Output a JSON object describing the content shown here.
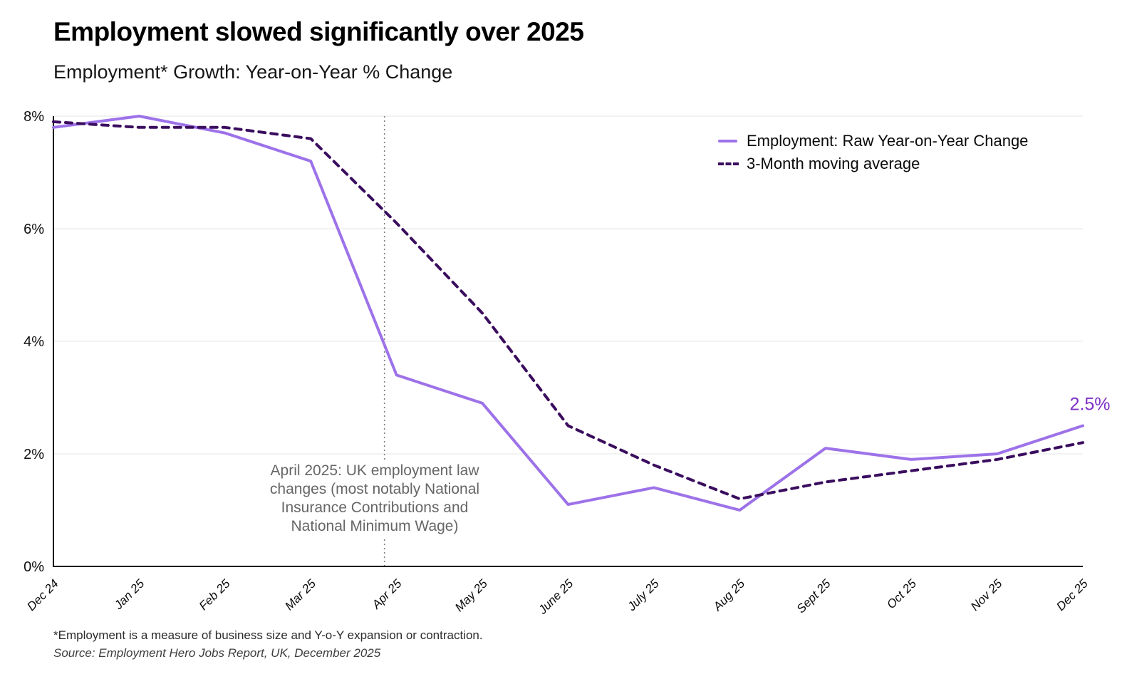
{
  "header": {
    "title": "Employment slowed significantly over 2025",
    "subtitle": "Employment* Growth: Year-on-Year % Change"
  },
  "chart_data": {
    "type": "line",
    "categories": [
      "Dec 24",
      "Jan 25",
      "Feb 25",
      "Mar 25",
      "Apr 25",
      "May 25",
      "June 25",
      "July 25",
      "Aug 25",
      "Sept 25",
      "Oct 25",
      "Nov 25",
      "Dec 25"
    ],
    "series": [
      {
        "name": "Employment: Raw Year-on-Year Change",
        "style": "solid",
        "color": "#9D72E9",
        "values": [
          7.8,
          8.0,
          7.7,
          7.2,
          3.4,
          2.9,
          1.1,
          1.4,
          1.0,
          2.1,
          1.9,
          2.0,
          2.5
        ]
      },
      {
        "name": "3-Month moving average",
        "style": "dashed",
        "color": "#3A0D5E",
        "values": [
          7.9,
          7.8,
          7.8,
          7.6,
          6.1,
          4.5,
          2.5,
          1.8,
          1.2,
          1.5,
          1.7,
          1.9,
          2.2
        ]
      }
    ],
    "ylim": [
      0,
      8
    ],
    "yticks": [
      0,
      2,
      4,
      6,
      8
    ],
    "ytick_suffix": "%",
    "grid": true,
    "legend_position": "top-right",
    "end_label": {
      "text": "2.5%",
      "color": "#7D2FC8"
    },
    "annotation": {
      "lines": [
        "April 2025: UK employment law",
        "changes (most notably National",
        "Insurance Contributions and",
        "National Minimum Wage)"
      ],
      "at_category": "Apr 25"
    }
  },
  "footnotes": {
    "definition": "*Employment is a measure of business size and Y-o-Y expansion or contraction.",
    "source": "Source: Employment Hero Jobs Report, UK, December 2025"
  }
}
